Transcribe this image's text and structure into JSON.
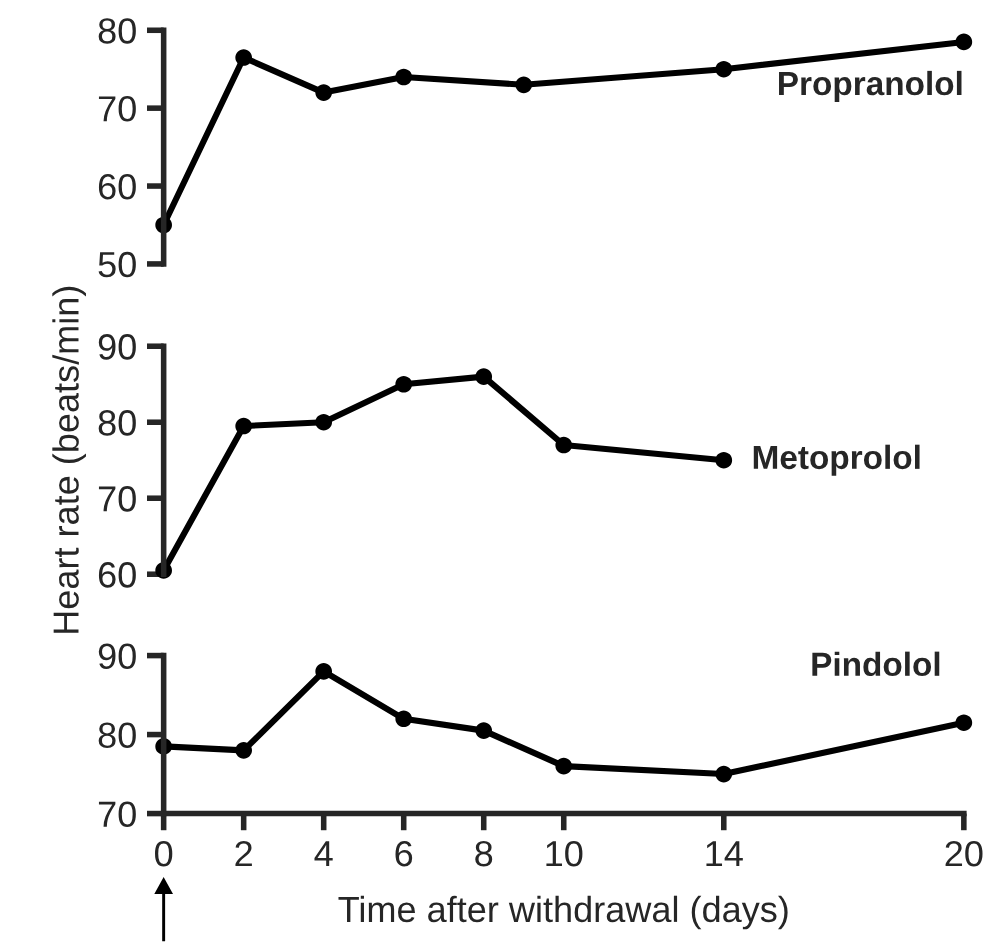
{
  "chart_data": [
    {
      "type": "line",
      "xlim": [
        0,
        20
      ],
      "ylim": [
        50,
        80
      ],
      "yticks": [
        50,
        60,
        70,
        80
      ],
      "tick_labels": "y",
      "marker": "circle",
      "line_style": "solid",
      "series": [
        {
          "name": "Propranolol",
          "color": "#000000",
          "x": [
            0,
            2,
            4,
            6,
            9,
            14,
            20
          ],
          "values": [
            55,
            76.5,
            72,
            74,
            73,
            75,
            78.5
          ]
        }
      ]
    },
    {
      "type": "line",
      "xlim": [
        0,
        20
      ],
      "ylim": [
        60,
        90
      ],
      "yticks": [
        60,
        70,
        80,
        90
      ],
      "tick_labels": "y",
      "ylabel": "Heart rate (beats/min)",
      "marker": "circle",
      "line_style": "solid",
      "series": [
        {
          "name": "Metoprolol",
          "color": "#000000",
          "x": [
            0,
            2,
            4,
            6,
            8,
            10,
            14
          ],
          "values": [
            60.5,
            79.5,
            80,
            85,
            86,
            77,
            75
          ]
        }
      ]
    },
    {
      "type": "line",
      "xlim": [
        0,
        20
      ],
      "xticks": [
        0,
        2,
        4,
        6,
        8,
        10,
        14,
        20
      ],
      "ylim": [
        70,
        90
      ],
      "yticks": [
        70,
        80,
        90
      ],
      "xlabel": "Time after withdrawal (days)",
      "marker": "circle",
      "line_style": "solid",
      "series": [
        {
          "name": "Pindolol",
          "color": "#000000",
          "x": [
            0,
            2,
            4,
            6,
            8,
            10,
            14,
            20
          ],
          "values": [
            78.5,
            78,
            88,
            82,
            80.5,
            76,
            75,
            81.5
          ]
        }
      ]
    }
  ]
}
